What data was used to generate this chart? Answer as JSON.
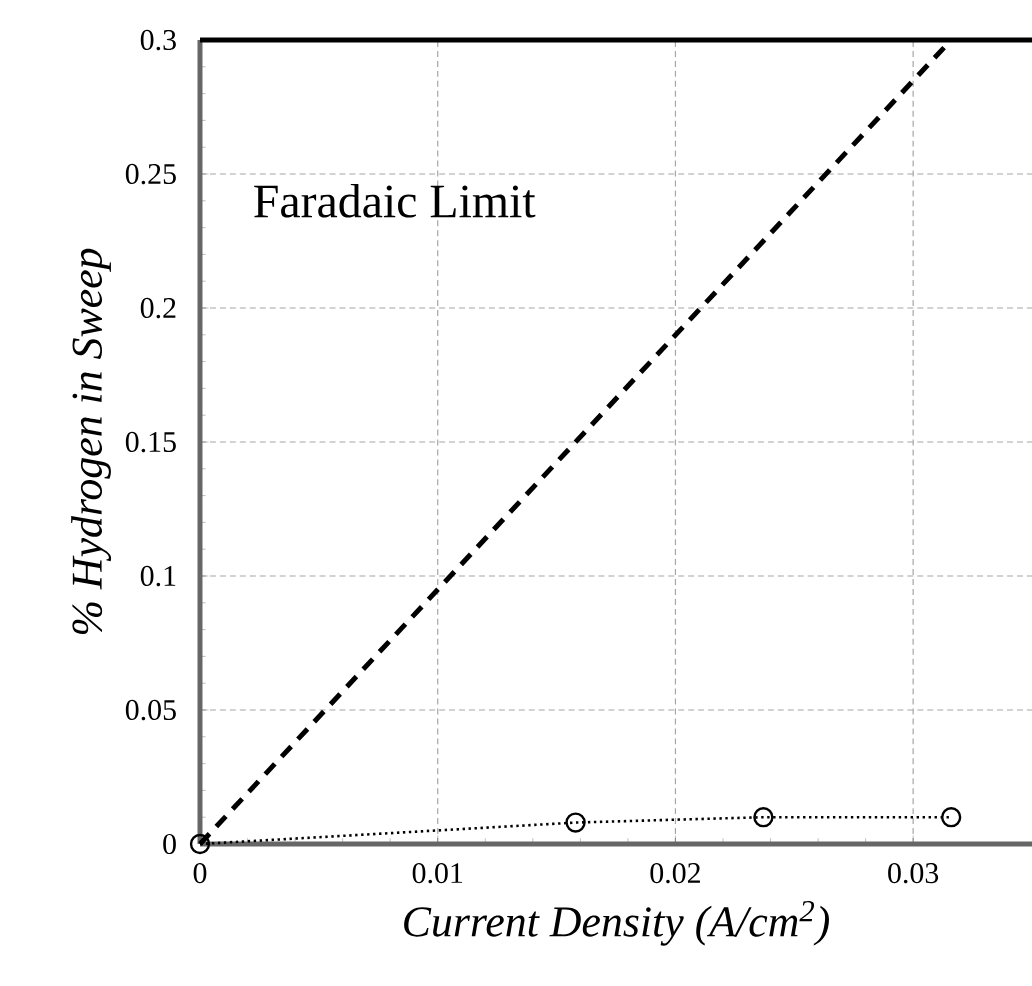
{
  "chart_data": {
    "type": "line",
    "xlabel": "Current Density (A/cm$^{2}$)",
    "ylabel": "% Hydrogen in Sweep",
    "xlim": [
      0,
      0.035
    ],
    "ylim": [
      0,
      0.3
    ],
    "xticks": [
      0,
      0.01,
      0.02,
      0.03
    ],
    "yticks": [
      0,
      0.05,
      0.1,
      0.15,
      0.2,
      0.25,
      0.3
    ],
    "grid": true,
    "series": [
      {
        "color": "#000000",
        "x": [
          0,
          0.0316
        ],
        "values": [
          0,
          0.3
        ],
        "line_style": "dashed"
      },
      {
        "color": "#000000",
        "x": [
          0,
          0.0158,
          0.0237,
          0.0316
        ],
        "values": [
          0,
          0.008,
          0.01,
          0.01
        ],
        "line_style": "dotted",
        "marker": "circle"
      }
    ],
    "annotations": [
      "Faradaic Limit"
    ]
  }
}
